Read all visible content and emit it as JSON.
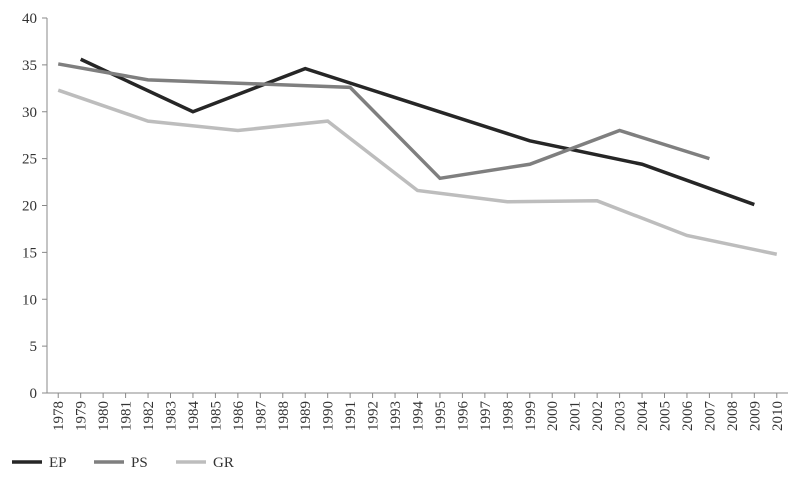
{
  "chart_data": {
    "type": "line",
    "series": [
      {
        "name": "EP",
        "color": "#262626",
        "x": [
          1979,
          1984,
          1989,
          1999,
          2004,
          2009
        ],
        "values": [
          35.6,
          30.0,
          34.6,
          26.9,
          24.4,
          20.1
        ]
      },
      {
        "name": "PS",
        "color": "#7f7f7f",
        "x": [
          1978,
          1982,
          1991,
          1995,
          1999,
          2003,
          2007
        ],
        "values": [
          35.1,
          33.4,
          32.6,
          22.9,
          24.4,
          28.0,
          25.0
        ]
      },
      {
        "name": "GR",
        "color": "#bdbdbd",
        "x": [
          1978,
          1982,
          1986,
          1990,
          1994,
          1998,
          2002,
          2006,
          2010
        ],
        "values": [
          32.3,
          29.0,
          28.0,
          29.0,
          21.6,
          20.4,
          20.5,
          16.8,
          14.8
        ]
      }
    ],
    "xlim": [
      1977.5,
      2010.5
    ],
    "xticks": [
      1978,
      1979,
      1980,
      1981,
      1982,
      1983,
      1984,
      1985,
      1986,
      1987,
      1988,
      1989,
      1990,
      1991,
      1992,
      1993,
      1994,
      1995,
      1996,
      1997,
      1998,
      1999,
      2000,
      2001,
      2002,
      2003,
      2004,
      2005,
      2006,
      2007,
      2008,
      2009,
      2010
    ],
    "ylim": [
      0,
      40
    ],
    "yticks": [
      0,
      5,
      10,
      15,
      20,
      25,
      30,
      35,
      40
    ],
    "grid": false,
    "legend": "bottom-left"
  }
}
